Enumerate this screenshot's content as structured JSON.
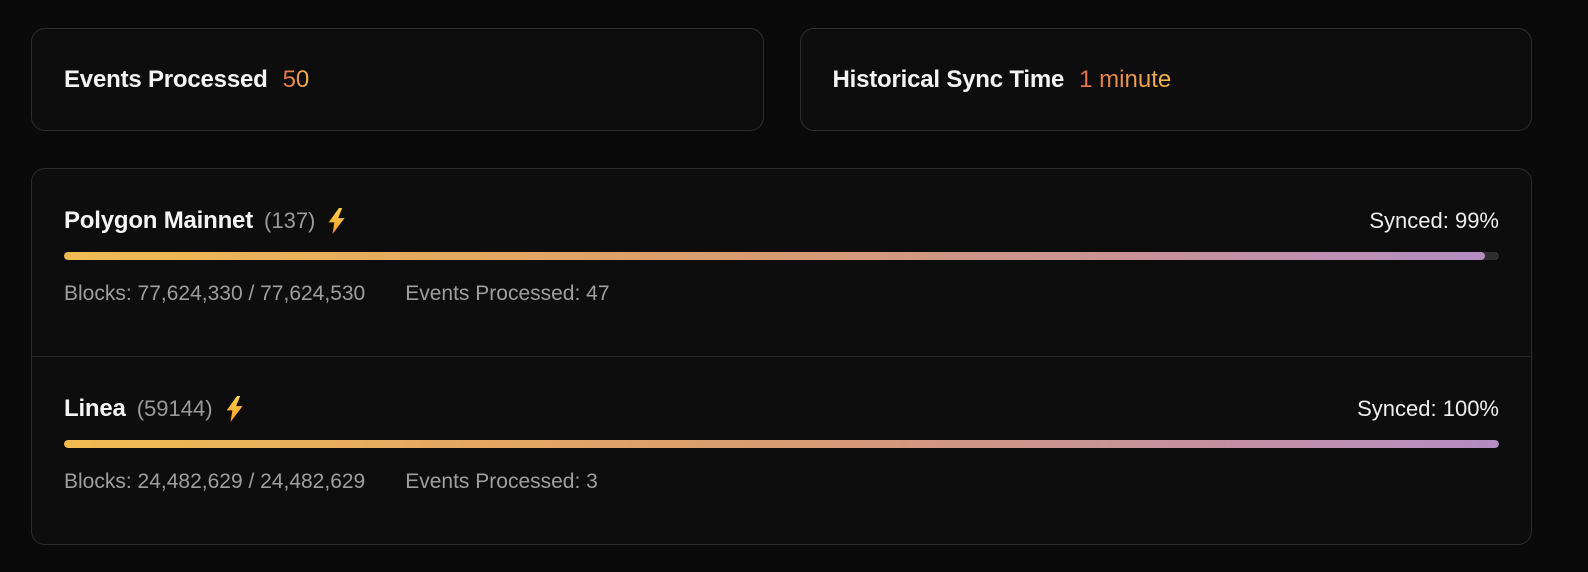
{
  "stats": [
    {
      "label": "Events Processed",
      "value": "50"
    },
    {
      "label": "Historical Sync Time",
      "value": "1 minute"
    }
  ],
  "networks": [
    {
      "name": "Polygon Mainnet",
      "chain_id": "(137)",
      "synced_label": "Synced: 99%",
      "progress_percent": 99,
      "blocks_label": "Blocks: 77,624,330 / 77,624,530",
      "events_label": "Events Processed: 47"
    },
    {
      "name": "Linea",
      "chain_id": "(59144)",
      "synced_label": "Synced: 100%",
      "progress_percent": 100,
      "blocks_label": "Blocks: 24,482,629 / 24,482,629",
      "events_label": "Events Processed: 3"
    }
  ],
  "icons": {
    "bolt": "lightning-bolt"
  },
  "colors": {
    "page_background": "#0a0a0a",
    "card_border": "#2d2d2d",
    "accent_gradient_from": "#e2704a",
    "accent_gradient_to": "#f3b74b",
    "bar_gradient_from": "#f0bc52",
    "bar_gradient_mid": "#d89b72",
    "bar_gradient_to": "#b48cc4",
    "bar_track": "#2e2e2e",
    "muted_text": "#9e9e9e",
    "bright_text": "#f4f4f5"
  }
}
